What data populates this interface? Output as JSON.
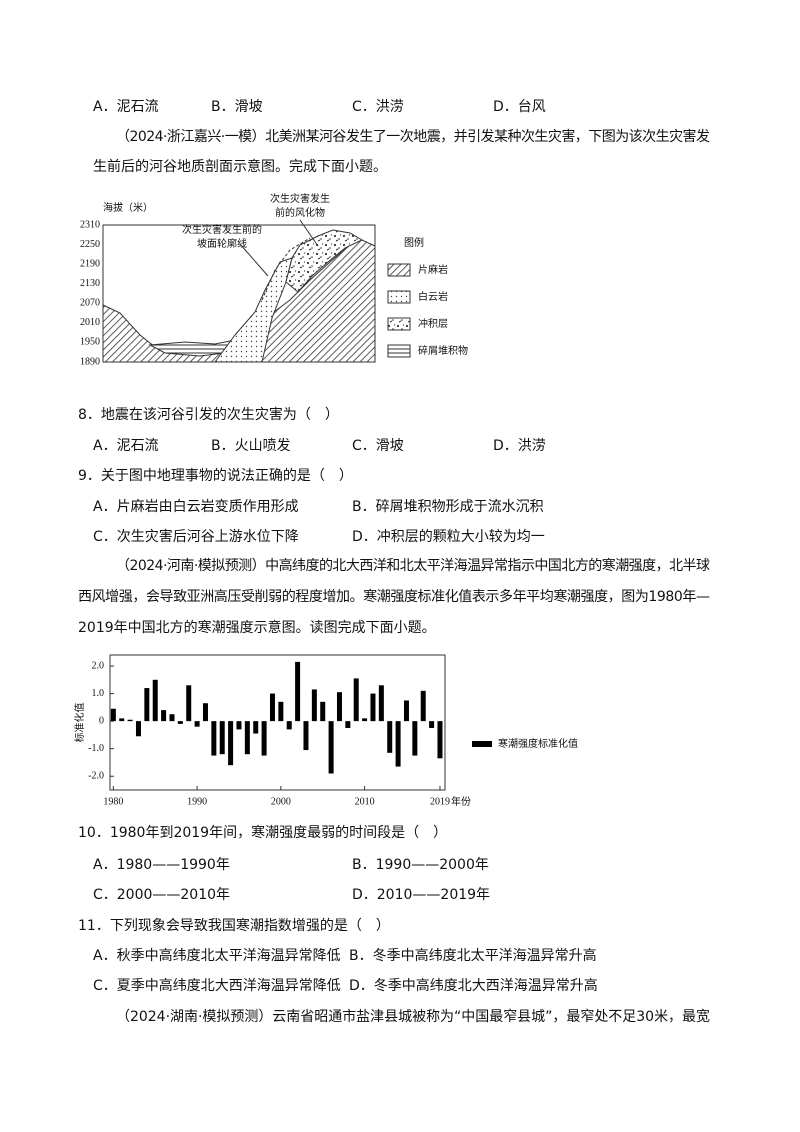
{
  "q7_options": [
    "A．泥石流",
    "B．滑坡",
    "C．洪涝",
    "D．台风"
  ],
  "passage1": [
    "（2024·浙江嘉兴·一模）北美洲某河谷发生了一次地震，并引发某种次生灾害，下图为该次生灾害发",
    "生前后的河谷地质剖面示意图。完成下面小题。"
  ],
  "figure1": {
    "y_label": "海拔（米）",
    "yticks": [
      2310,
      2250,
      2190,
      2130,
      2070,
      2010,
      1950,
      1890
    ],
    "annotation_weathering": [
      "次生灾害发生",
      "前的风化物"
    ],
    "annotation_slope": [
      "次生灾害发生前的",
      "坡面轮廓线"
    ],
    "legend_title": "图例",
    "legend": [
      "片麻岩",
      "白云岩",
      "冲积层",
      "碎屑堆积物"
    ]
  },
  "q8": {
    "stem": "8．地震在该河谷引发的次生灾害为（　）",
    "options": [
      "A．泥石流",
      "B．火山喷发",
      "C．滑坡",
      "D．洪涝"
    ]
  },
  "q9": {
    "stem": "9．关于图中地理事物的说法正确的是（　）",
    "options": [
      "A．片麻岩由白云岩变质作用形成",
      "B．碎屑堆积物形成于流水沉积",
      "C．次生灾害后河谷上游水位下降",
      "D．冲积层的颗粒大小较为均一"
    ]
  },
  "passage2": [
    "（2024·河南·模拟预测）中高纬度的北大西洋和北太平洋海温异常指示中国北方的寒潮强度，北半球",
    "西风增强，会导致亚洲高压受削弱的程度增加。寒潮强度标准化值表示多年平均寒潮强度，图为1980年—",
    "2019年中国北方的寒潮强度示意图。读图完成下面小题。"
  ],
  "chart_data": {
    "type": "bar",
    "y_label": "标准化值",
    "x_label": "年份",
    "x": [
      1980,
      1981,
      1982,
      1983,
      1984,
      1985,
      1986,
      1987,
      1988,
      1989,
      1990,
      1991,
      1992,
      1993,
      1994,
      1995,
      1996,
      1997,
      1998,
      1999,
      2000,
      2001,
      2002,
      2003,
      2004,
      2005,
      2006,
      2007,
      2008,
      2009,
      2010,
      2011,
      2012,
      2013,
      2014,
      2015,
      2016,
      2017,
      2018,
      2019
    ],
    "series": [
      {
        "name": "寒潮强度标准化值",
        "color": "#000000",
        "values": [
          0.45,
          0.1,
          0.05,
          -0.55,
          1.2,
          1.5,
          0.4,
          0.25,
          -0.1,
          1.3,
          -0.2,
          0.65,
          -1.25,
          -1.2,
          -1.6,
          -0.3,
          -1.2,
          -0.45,
          -1.25,
          1.0,
          0.7,
          -0.3,
          2.15,
          -1.05,
          1.15,
          0.7,
          -1.9,
          1.05,
          -0.25,
          1.55,
          0.1,
          1.0,
          1.3,
          -1.15,
          -1.65,
          0.75,
          -1.25,
          1.1,
          -0.25,
          -1.35
        ]
      }
    ],
    "xlim": [
      1979.6,
      2019.6
    ],
    "xticks": [
      1980,
      1990,
      2000,
      2010,
      2019
    ],
    "ylim": [
      -2.5,
      2.4
    ],
    "yticks": [
      {
        "value": 2,
        "label": "2.0"
      },
      {
        "value": 1,
        "label": "1.0"
      },
      0,
      {
        "value": -1,
        "label": "-1.0"
      },
      {
        "value": -2,
        "label": "-2.0"
      }
    ],
    "legend": "right"
  },
  "q10": {
    "stem": "10．1980年到2019年间，寒潮强度最弱的时间段是（　）",
    "options": [
      "A．1980——1990年",
      "B．1990——2000年",
      "C．2000——2010年",
      "D．2010——2019年"
    ]
  },
  "q11": {
    "stem": "11．下列现象会导致我国寒潮指数增强的是（　）",
    "options": [
      "A．秋季中高纬度北太平洋海温异常降低",
      "B．冬季中高纬度北太平洋海温异常升高",
      "C．夏季中高纬度北大西洋海温异常降低",
      "D．冬季中高纬度北大西洋海温异常升高"
    ]
  },
  "passage3": [
    "（2024·湖南·模拟预测）云南省昭通市盐津县城被称为“中国最窄县城”，最窄处不足30米，最宽"
  ]
}
